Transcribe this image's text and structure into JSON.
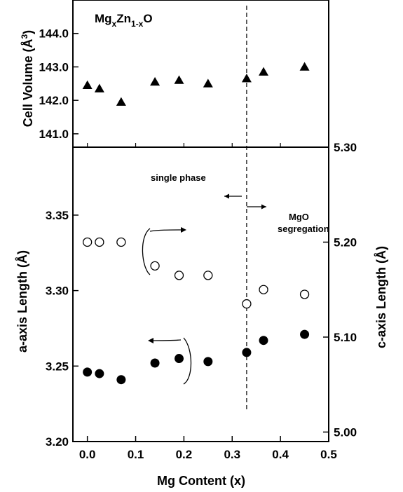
{
  "chart_data": [
    {
      "type": "scatter",
      "title": "MgxZn1-xO",
      "title_parts": {
        "base1": "Mg",
        "sub1": "x",
        "base2": "Zn",
        "sub2": "1-x",
        "base3": "O"
      },
      "ylabel": "Cell Volume (Å³)",
      "ylabel_parts": {
        "main": "Cell Volume (Å",
        "sup": "3",
        "end": ")"
      },
      "xlim": [
        -0.03,
        0.5
      ],
      "ylim": [
        140.6,
        145.0
      ],
      "yticks": [
        "141.0",
        "142.0",
        "143.0",
        "144.0"
      ],
      "series": [
        {
          "marker": "filled-triangle",
          "x": [
            0.0,
            0.025,
            0.07,
            0.14,
            0.19,
            0.25,
            0.33,
            0.365,
            0.45
          ],
          "y": [
            142.45,
            142.35,
            141.95,
            142.55,
            142.6,
            142.5,
            142.65,
            142.85,
            143.0
          ]
        }
      ],
      "dashed_vline_x": 0.33
    },
    {
      "type": "scatter",
      "xlabel": "Mg Content (x)",
      "ylabel": "a-axis Length (Å)",
      "ylabel_right": "c-axis Length (Å)",
      "xlim": [
        -0.03,
        0.5
      ],
      "ylim": [
        3.2,
        3.395
      ],
      "ylim_right": [
        4.99,
        5.3
      ],
      "xticks": [
        "0.0",
        "0.1",
        "0.2",
        "0.3",
        "0.4",
        "0.5"
      ],
      "yticks": [
        "3.20",
        "3.25",
        "3.30",
        "3.35"
      ],
      "yticks_right": [
        "5.00",
        "5.10",
        "5.20",
        "5.30"
      ],
      "series": [
        {
          "marker": "open-circle",
          "axis": "right",
          "x": [
            0.0,
            0.025,
            0.07,
            0.14,
            0.19,
            0.25,
            0.33,
            0.365,
            0.45
          ],
          "y": [
            5.2,
            5.2,
            5.2,
            5.175,
            5.165,
            5.165,
            5.135,
            5.15,
            5.145
          ]
        },
        {
          "marker": "filled-circle",
          "axis": "left",
          "x": [
            0.0,
            0.025,
            0.07,
            0.14,
            0.19,
            0.25,
            0.33,
            0.365,
            0.45
          ],
          "y": [
            3.246,
            3.245,
            3.241,
            3.252,
            3.255,
            3.253,
            3.259,
            3.267,
            3.271
          ]
        }
      ],
      "annotations": {
        "single_phase": "single phase",
        "mgo_line1": "MgO",
        "mgo_line2": "segregation"
      },
      "dashed_vline_x": 0.33
    }
  ]
}
